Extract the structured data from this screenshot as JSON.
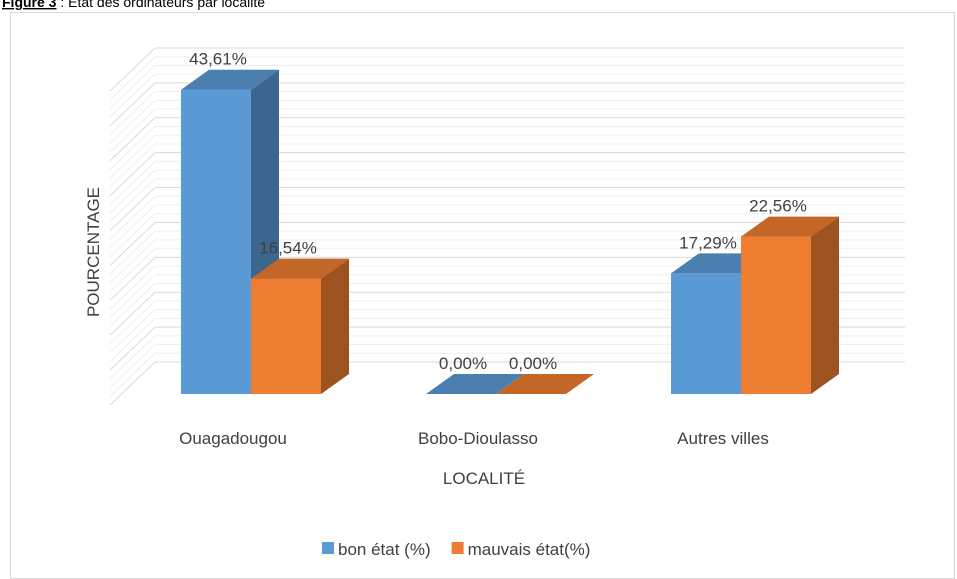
{
  "chart_data": {
    "type": "bar3d",
    "figure_label": "Figure 3",
    "title": ": État des ordinateurs par localité",
    "xlabel": "LOCALITÉ",
    "ylabel": "POURCENTAGE",
    "categories": [
      "Ouagadougou",
      "Bobo-Dioulasso",
      "Autres villes"
    ],
    "series": [
      {
        "name": "bon état (%)",
        "color": "#5b9bd5",
        "values": [
          43.61,
          0,
          17.29
        ],
        "value_labels": [
          "43,61%",
          "0,00%",
          "17,29%"
        ]
      },
      {
        "name": "mauvais état(%)",
        "color": "#ed7d31",
        "values": [
          16.54,
          0,
          22.56
        ],
        "value_labels": [
          "16,54%",
          "0,00%",
          "22,56%"
        ]
      }
    ],
    "ylim": [
      0,
      45
    ],
    "yticks": [
      0,
      5,
      10,
      15,
      20,
      25,
      30,
      35,
      40,
      45
    ],
    "grid": true,
    "legend": "bottom"
  }
}
